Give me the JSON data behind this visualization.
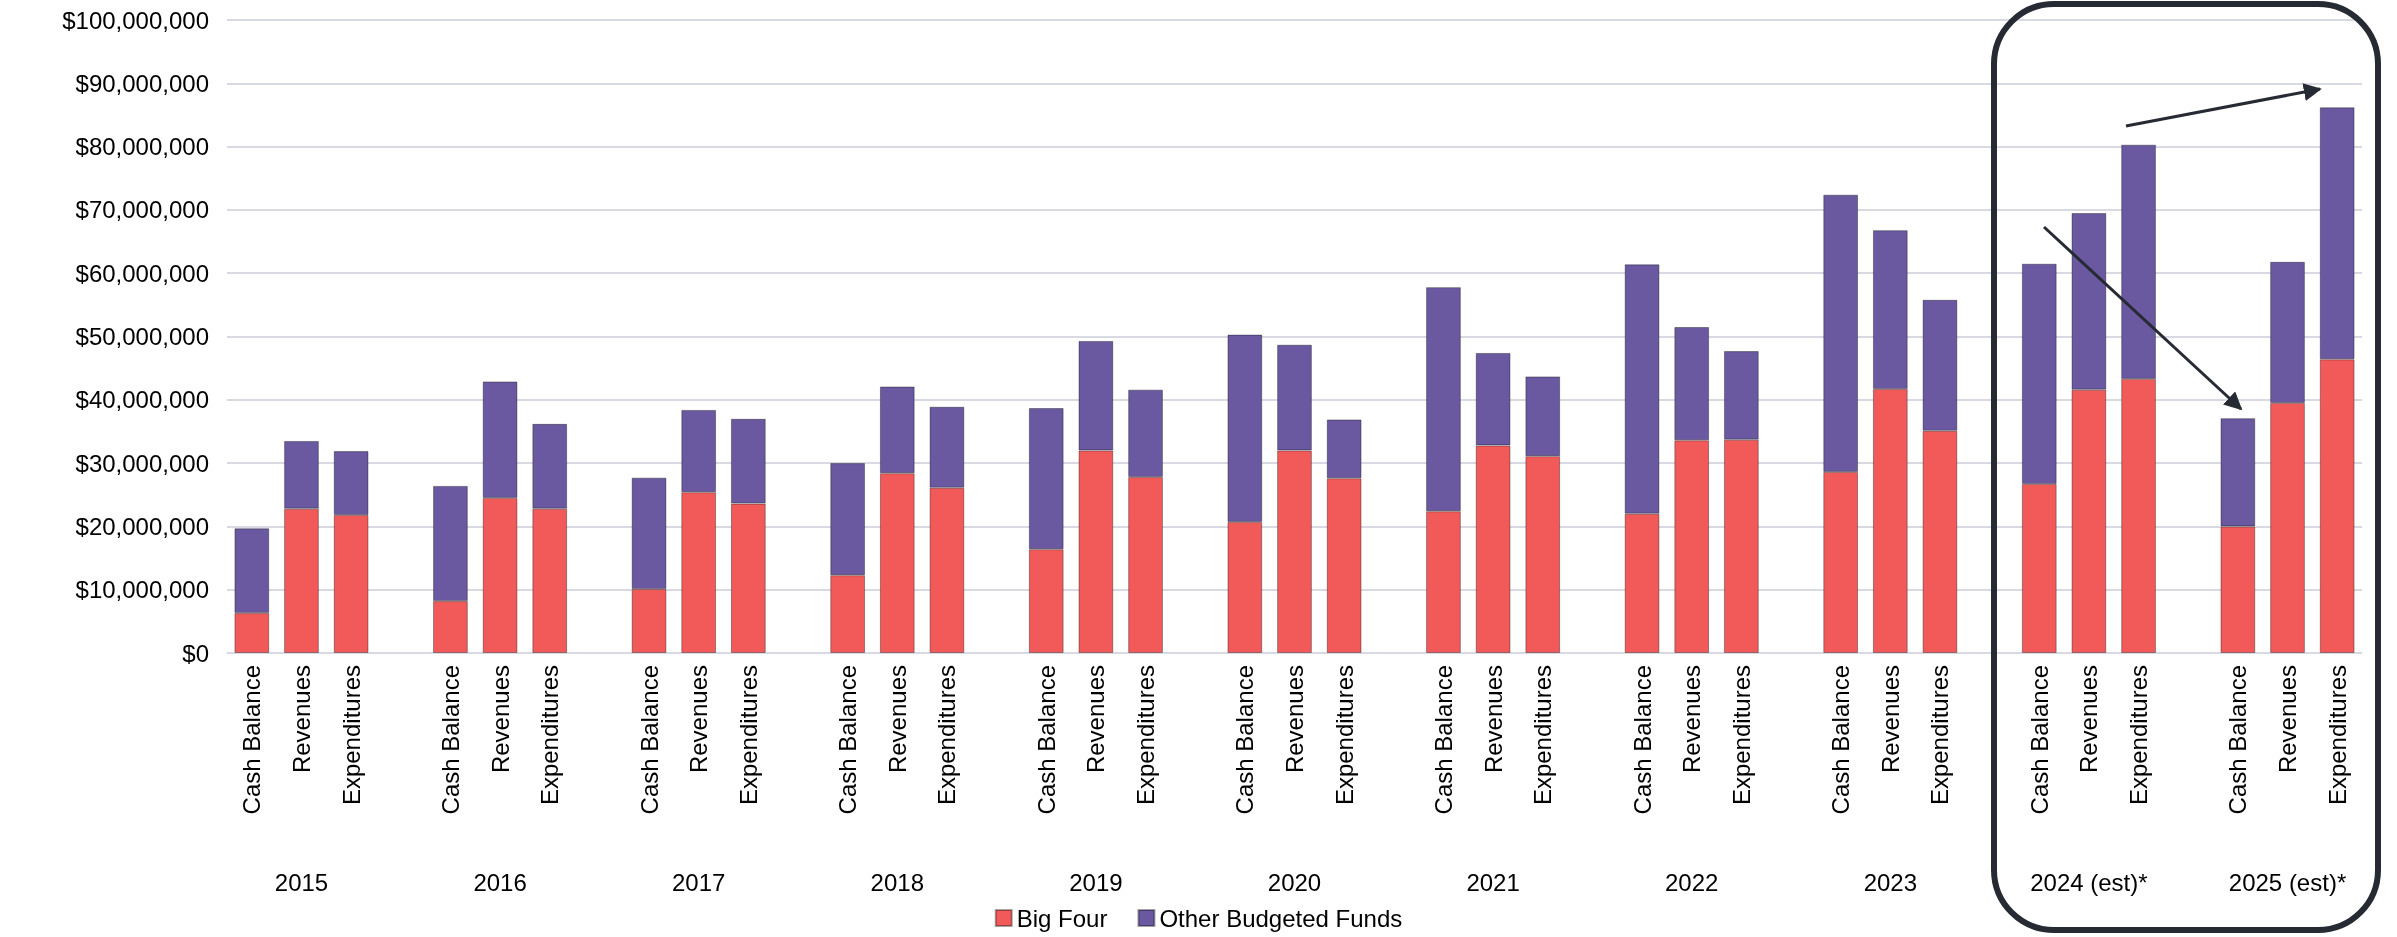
{
  "chart_data": {
    "type": "bar",
    "stacked": true,
    "categories": [
      "Cash Balance",
      "Revenues",
      "Expenditures",
      null,
      "Cash Balance",
      "Revenues",
      "Expenditures",
      null,
      "Cash Balance",
      "Revenues",
      "Expenditures",
      null,
      "Cash Balance",
      "Revenues",
      "Expenditures",
      null,
      "Cash Balance",
      "Revenues",
      "Expenditures",
      null,
      "Cash Balance",
      "Revenues",
      "Expenditures",
      null,
      "Cash Balance",
      "Revenues",
      "Expenditures",
      null,
      "Cash Balance",
      "Revenues",
      "Expenditures",
      null,
      "Cash Balance",
      "Revenues",
      "Expenditures",
      null,
      "Cash Balance",
      "Revenues",
      "Expenditures",
      null,
      "Cash Balance",
      "Revenues",
      "Expenditures"
    ],
    "series": [
      {
        "name": "Big Four",
        "color": "#f25a5a",
        "values": [
          6300000,
          22800000,
          21800000,
          null,
          8200000,
          24500000,
          22800000,
          null,
          10100000,
          25400000,
          23600000,
          null,
          12300000,
          28400000,
          26100000,
          null,
          16400000,
          32000000,
          27800000,
          null,
          20700000,
          32000000,
          27600000,
          null,
          22400000,
          32800000,
          31100000,
          null,
          22000000,
          33600000,
          33700000,
          null,
          28600000,
          41700000,
          35100000,
          null,
          26700000,
          41600000,
          43300000,
          null,
          20000000,
          39500000,
          46400000
        ]
      },
      {
        "name": "Other Budgeted Funds",
        "color": "#6a58a0",
        "values": [
          13400000,
          10700000,
          10100000,
          null,
          18200000,
          18400000,
          13400000,
          null,
          17600000,
          13000000,
          13400000,
          null,
          17700000,
          13700000,
          12800000,
          null,
          22300000,
          17300000,
          13800000,
          null,
          29600000,
          16700000,
          9300000,
          null,
          35400000,
          14600000,
          12600000,
          null,
          39400000,
          17900000,
          14000000,
          null,
          43800000,
          25100000,
          20700000,
          null,
          34800000,
          27900000,
          37000000,
          null,
          17100000,
          22300000,
          39800000
        ]
      }
    ],
    "ylim": [
      0,
      100000000
    ],
    "yticks": [
      {
        "value": 0,
        "label": "$0"
      },
      {
        "value": 10000000,
        "label": "$10,000,000"
      },
      {
        "value": 20000000,
        "label": "$20,000,000"
      },
      {
        "value": 30000000,
        "label": "$30,000,000"
      },
      {
        "value": 40000000,
        "label": "$40,000,000"
      },
      {
        "value": 50000000,
        "label": "$50,000,000"
      },
      {
        "value": 60000000,
        "label": "$60,000,000"
      },
      {
        "value": 70000000,
        "label": "$70,000,000"
      },
      {
        "value": 80000000,
        "label": "$80,000,000"
      },
      {
        "value": 90000000,
        "label": "$90,000,000"
      },
      {
        "value": 100000000,
        "label": "$100,000,000"
      }
    ],
    "grid": "y",
    "legend": "bottom",
    "annotations": [
      "2015",
      "2016",
      "2017",
      "2018",
      "2019",
      "2020",
      "2021",
      "2022",
      "2023",
      "2024 (est)*",
      "2025 (est)*"
    ]
  }
}
